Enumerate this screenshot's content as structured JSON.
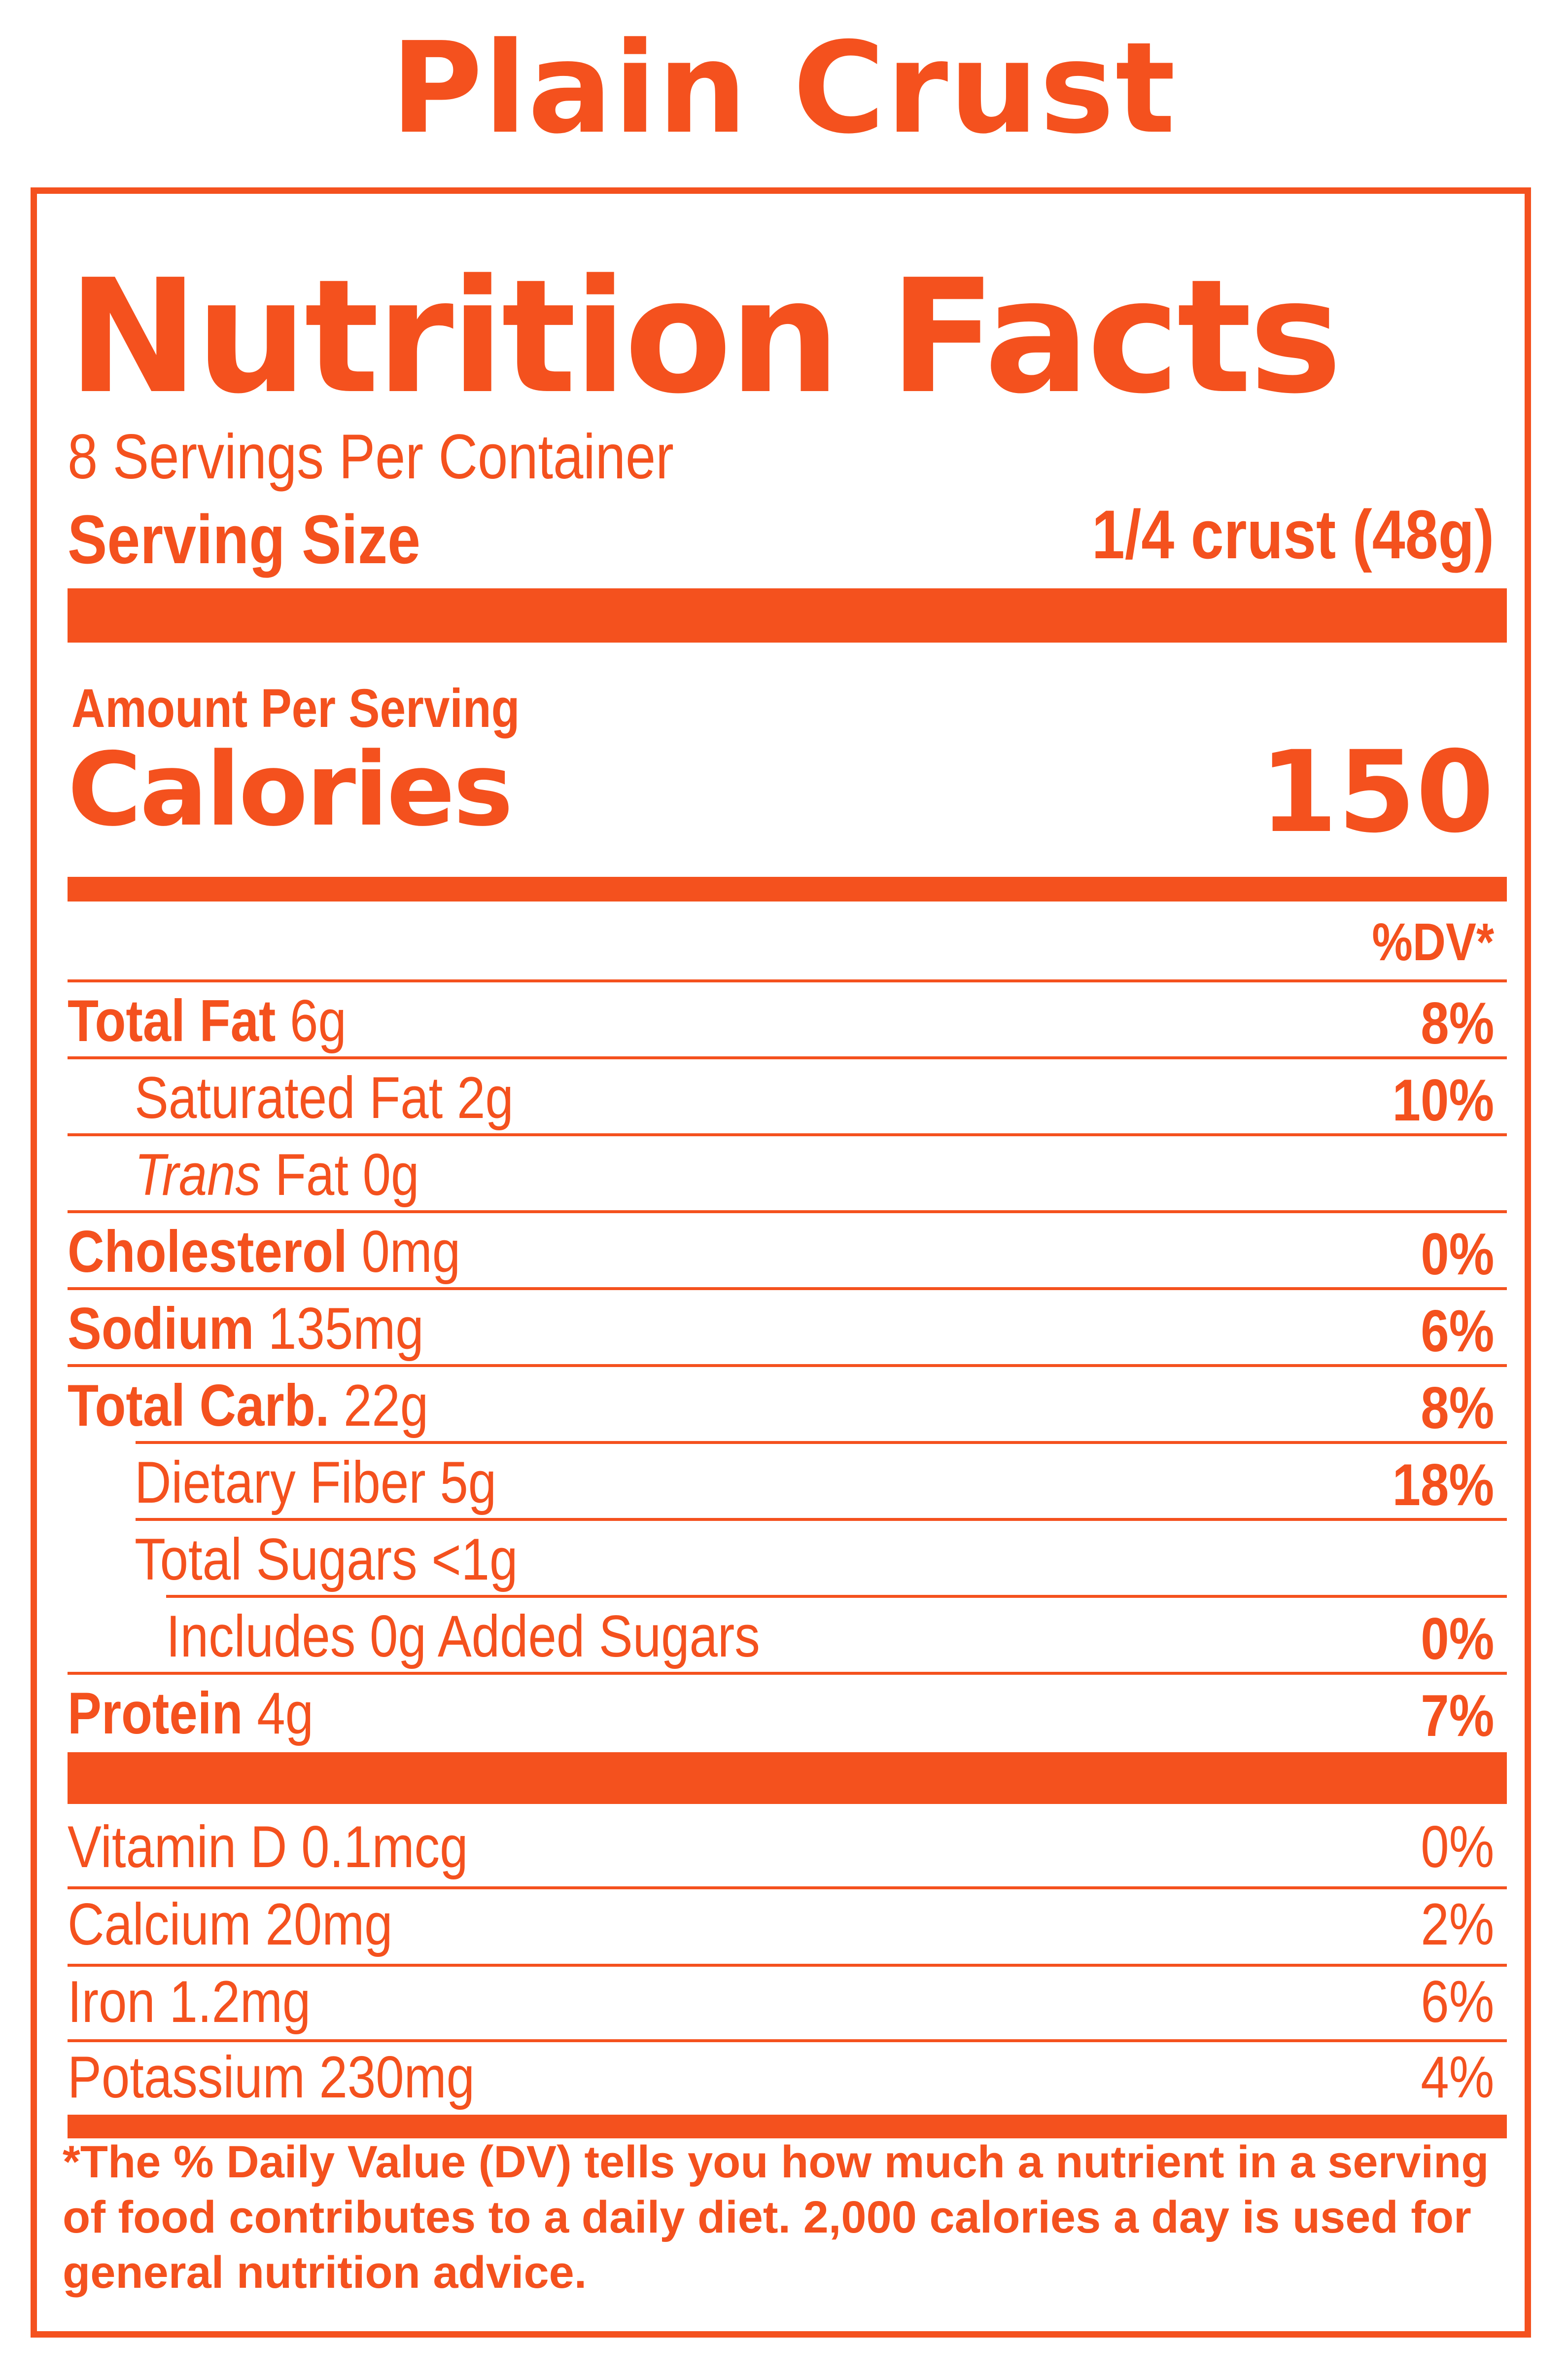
{
  "product_title": "Plain Crust",
  "label": {
    "heading": "Nutrition Facts",
    "servings_per_container": "8 Servings Per Container",
    "serving_size_label": "Serving Size",
    "serving_size_value": "1/4 crust (48g)",
    "amount_per_serving": "Amount Per Serving",
    "calories_label": "Calories",
    "calories_value": "150",
    "dv_header": "%DV*",
    "nutrients": [
      {
        "name": "Total Fat",
        "amount": "6g",
        "dv": "8%"
      },
      {
        "name": "Saturated Fat",
        "amount": "2g",
        "dv": "10%"
      },
      {
        "name": "Trans",
        "name_rest": "Fat",
        "amount": "0g",
        "dv": ""
      },
      {
        "name": "Cholesterol",
        "amount": "0mg",
        "dv": "0%"
      },
      {
        "name": "Sodium",
        "amount": "135mg",
        "dv": "6%"
      },
      {
        "name": "Total Carb.",
        "amount": "22g",
        "dv": "8%"
      },
      {
        "name": "Dietary Fiber",
        "amount": "5g",
        "dv": "18%"
      },
      {
        "name": "Total Sugars",
        "amount": "<1g",
        "dv": ""
      },
      {
        "name": "Includes 0g Added Sugars",
        "amount": "",
        "dv": "0%"
      },
      {
        "name": "Protein",
        "amount": "4g",
        "dv": "7%"
      }
    ],
    "vitamins": [
      {
        "name": "Vitamin D",
        "amount": "0.1mcg",
        "dv": "0%"
      },
      {
        "name": "Calcium",
        "amount": "20mg",
        "dv": "2%"
      },
      {
        "name": "Iron",
        "amount": "1.2mg",
        "dv": "6%"
      },
      {
        "name": "Potassium",
        "amount": "230mg",
        "dv": "4%"
      }
    ],
    "footnote": "*The % Daily Value (DV) tells you how much a nutrient in a serving of food contributes to a daily diet. 2,000 calories a day is used for general nutrition advice."
  },
  "colors": {
    "accent": "#f4511e",
    "background": "#ffffff"
  }
}
